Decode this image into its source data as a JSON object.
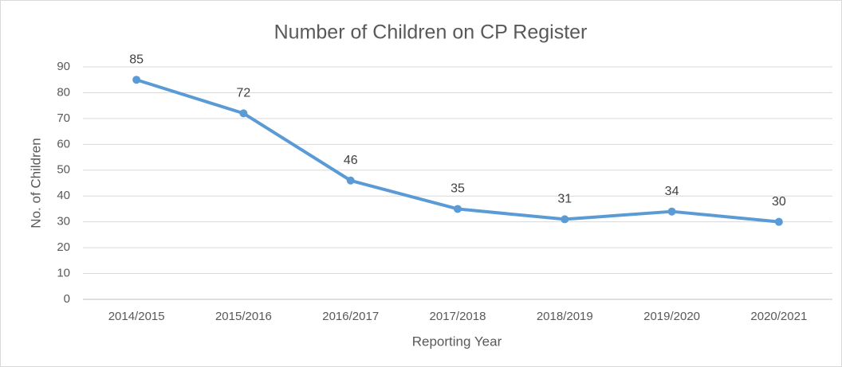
{
  "chart_data": {
    "type": "line",
    "title": "Number of Children on CP Register",
    "x_label": "Reporting Year",
    "y_label": "No. of Children",
    "categories": [
      "2014/2015",
      "2015/2016",
      "2016/2017",
      "2017/2018",
      "2018/2019",
      "2019/2020",
      "2020/2021"
    ],
    "series": [
      {
        "name": "No. of Children",
        "color": "#5b9bd5",
        "values": [
          85,
          72,
          46,
          35,
          31,
          34,
          30
        ]
      }
    ],
    "ylim": [
      0,
      90
    ],
    "yticks": [
      0,
      10,
      20,
      30,
      40,
      50,
      60,
      70,
      80,
      90
    ],
    "grid": true,
    "data_labels": true
  }
}
